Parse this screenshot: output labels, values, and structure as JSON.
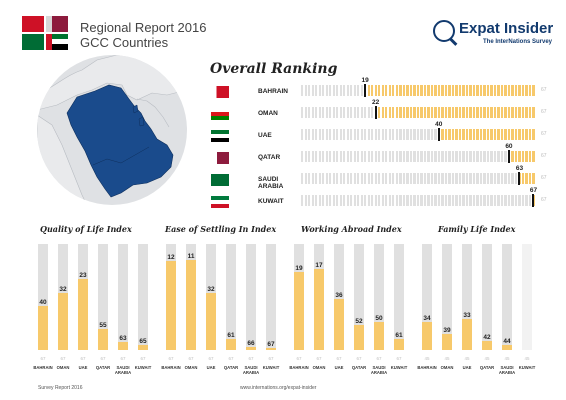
{
  "header": {
    "title": "Regional Report 2016",
    "subtitle": "GCC Countries",
    "brand": "Expat Insider",
    "brand_tagline": "The InterNations Survey"
  },
  "colors": {
    "accent": "#f7c96b",
    "track": "#e0e0e0",
    "map_land": "#1a4b8c",
    "brand": "#123a6e"
  },
  "icons": {
    "logo": "gcc-flags-logo",
    "brand": "magnifier-globe-icon",
    "map": "gcc-region-map"
  },
  "footer": {
    "left": "Survey Report 2016",
    "right": "www.internations.org/expat-insider"
  },
  "chart_data": [
    {
      "type": "bar",
      "orientation": "horizontal",
      "title": "Overall Ranking",
      "categories": [
        "BAHRAIN",
        "OMAN",
        "UAE",
        "QATAR",
        "SAUDI ARABIA",
        "KUWAIT"
      ],
      "values": [
        19,
        22,
        40,
        60,
        63,
        67
      ],
      "xlim": [
        1,
        67
      ],
      "end_label": "67"
    },
    {
      "type": "bar",
      "title": "Quality of Life Index",
      "categories": [
        "BAHRAIN",
        "OMAN",
        "UAE",
        "QATAR",
        "SAUDI ARABIA",
        "KUWAIT"
      ],
      "values": [
        40,
        32,
        23,
        55,
        63,
        65
      ],
      "ylim": [
        67,
        1
      ],
      "foot_label": "67"
    },
    {
      "type": "bar",
      "title": "Ease of Settling In Index",
      "categories": [
        "BAHRAIN",
        "OMAN",
        "UAE",
        "QATAR",
        "SAUDI ARABIA",
        "KUWAIT"
      ],
      "values": [
        12,
        11,
        32,
        61,
        66,
        67
      ],
      "ylim": [
        67,
        1
      ],
      "foot_label": "67"
    },
    {
      "type": "bar",
      "title": "Working Abroad Index",
      "categories": [
        "BAHRAIN",
        "OMAN",
        "UAE",
        "QATAR",
        "SAUDI ARABIA",
        "KUWAIT"
      ],
      "values": [
        19,
        17,
        36,
        52,
        50,
        61
      ],
      "ylim": [
        67,
        1
      ],
      "foot_label": "67"
    },
    {
      "type": "bar",
      "title": "Family Life Index",
      "categories": [
        "BAHRAIN",
        "OMAN",
        "UAE",
        "QATAR",
        "SAUDI ARABIA",
        "KUWAIT"
      ],
      "values": [
        34,
        39,
        33,
        42,
        44,
        null
      ],
      "ylim": [
        45,
        1
      ],
      "foot_label": "45"
    }
  ]
}
